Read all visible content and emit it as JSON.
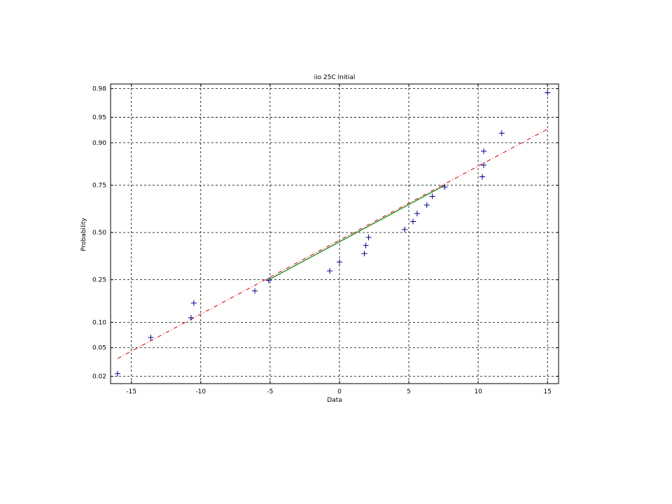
{
  "chart_data": {
    "type": "scatter",
    "title": "iio 25C Initial",
    "xlabel": "Data",
    "ylabel": "Probability",
    "xlim": [
      -16.5,
      15.8
    ],
    "x_ticks": [
      -15,
      -10,
      -5,
      0,
      5,
      10,
      15
    ],
    "x_tick_labels": [
      "-15",
      "-10",
      "-5",
      "0",
      "5",
      "10",
      "15"
    ],
    "y_scale": "normal-probability",
    "y_ticks": [
      0.02,
      0.05,
      0.1,
      0.25,
      0.5,
      0.75,
      0.9,
      0.95,
      0.98
    ],
    "y_tick_labels": [
      "0.02",
      "0.05",
      "0.10",
      "0.25",
      "0.50",
      "0.75",
      "0.90",
      "0.95",
      "0.98"
    ],
    "grid": true,
    "marker": "+",
    "colors": {
      "points": "#00008b",
      "fit_line": "#cc0000",
      "iqr_line": "#008000",
      "grid": "#000000"
    },
    "points": [
      {
        "x": -16.0,
        "p": 0.022
      },
      {
        "x": -13.6,
        "p": 0.067
      },
      {
        "x": -10.7,
        "p": 0.112
      },
      {
        "x": -10.5,
        "p": 0.157
      },
      {
        "x": -6.1,
        "p": 0.202
      },
      {
        "x": -5.1,
        "p": 0.247
      },
      {
        "x": -0.7,
        "p": 0.292
      },
      {
        "x": 0.0,
        "p": 0.337
      },
      {
        "x": 1.8,
        "p": 0.382
      },
      {
        "x": 1.9,
        "p": 0.427
      },
      {
        "x": 2.1,
        "p": 0.472
      },
      {
        "x": 4.7,
        "p": 0.517
      },
      {
        "x": 5.3,
        "p": 0.562
      },
      {
        "x": 5.6,
        "p": 0.607
      },
      {
        "x": 6.3,
        "p": 0.652
      },
      {
        "x": 6.7,
        "p": 0.697
      },
      {
        "x": 7.6,
        "p": 0.742
      },
      {
        "x": 10.3,
        "p": 0.787
      },
      {
        "x": 10.4,
        "p": 0.832
      },
      {
        "x": 10.4,
        "p": 0.877
      },
      {
        "x": 11.7,
        "p": 0.922
      },
      {
        "x": 15.0,
        "p": 0.977
      }
    ],
    "fit_line": {
      "x": [
        -16.0,
        15.0
      ],
      "p": [
        0.036,
        0.93
      ]
    },
    "iqr_line": {
      "x": [
        -5.1,
        7.6
      ],
      "p": [
        0.25,
        0.75
      ]
    }
  }
}
